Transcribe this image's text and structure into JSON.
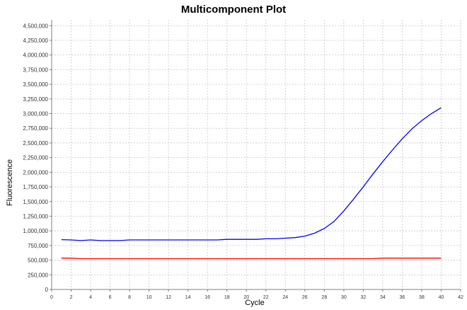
{
  "chart_data": {
    "type": "line",
    "title": "Multicomponent Plot",
    "xlabel": "Cycle",
    "ylabel": "Fluorescence",
    "xlim": [
      0,
      42
    ],
    "ylim": [
      0,
      4600000
    ],
    "x_ticks": [
      0,
      2,
      4,
      6,
      8,
      10,
      12,
      14,
      16,
      18,
      20,
      22,
      24,
      26,
      28,
      30,
      32,
      34,
      36,
      38,
      40,
      42
    ],
    "x_tick_labels": [
      "0",
      "2",
      "4",
      "6",
      "8",
      "10",
      "12",
      "14",
      "16",
      "18",
      "20",
      "22",
      "24",
      "26",
      "28",
      "30",
      "32",
      "34",
      "36",
      "38",
      "40",
      "42"
    ],
    "y_ticks": [
      0,
      250000,
      500000,
      750000,
      1000000,
      1250000,
      1500000,
      1750000,
      2000000,
      2250000,
      2500000,
      2750000,
      3000000,
      3250000,
      3500000,
      3750000,
      4000000,
      4250000,
      4500000
    ],
    "y_tick_labels": [
      "0",
      "250,000",
      "500,000",
      "750,000",
      "1,000,000",
      "1,250,000",
      "1,500,000",
      "1,750,000",
      "2,000,000",
      "2,250,000",
      "2,500,000",
      "2,750,000",
      "3,000,000",
      "3,250,000",
      "3,500,000",
      "3,750,000",
      "4,000,000",
      "4,250,000",
      "4,500,000"
    ],
    "grid": true,
    "legend": "none",
    "x": [
      1,
      2,
      3,
      4,
      5,
      6,
      7,
      8,
      9,
      10,
      11,
      12,
      13,
      14,
      15,
      16,
      17,
      18,
      19,
      20,
      21,
      22,
      23,
      24,
      25,
      26,
      27,
      28,
      29,
      30,
      31,
      32,
      33,
      34,
      35,
      36,
      37,
      38,
      39,
      40
    ],
    "series": [
      {
        "color": "#0000ff",
        "values": [
          850000,
          845000,
          835000,
          845000,
          835000,
          835000,
          835000,
          845000,
          845000,
          845000,
          845000,
          845000,
          845000,
          845000,
          845000,
          845000,
          845000,
          855000,
          855000,
          855000,
          855000,
          865000,
          865000,
          875000,
          885000,
          910000,
          960000,
          1040000,
          1160000,
          1340000,
          1540000,
          1750000,
          1970000,
          2180000,
          2380000,
          2570000,
          2740000,
          2880000,
          3000000,
          3100000
        ]
      },
      {
        "color": "#ff0000",
        "values": [
          535000,
          535000,
          525000,
          525000,
          525000,
          525000,
          525000,
          525000,
          525000,
          525000,
          525000,
          525000,
          525000,
          525000,
          525000,
          525000,
          525000,
          525000,
          525000,
          525000,
          525000,
          525000,
          525000,
          525000,
          525000,
          525000,
          525000,
          525000,
          525000,
          525000,
          525000,
          525000,
          525000,
          535000,
          535000,
          535000,
          535000,
          535000,
          535000,
          535000
        ]
      }
    ]
  }
}
